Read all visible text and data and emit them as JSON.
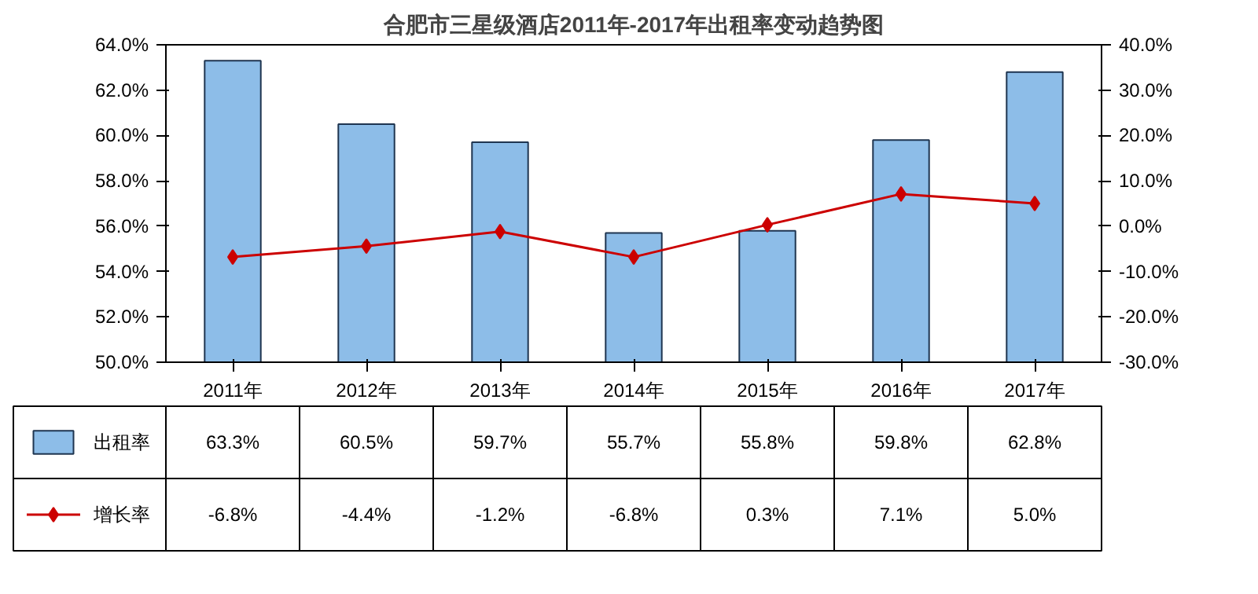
{
  "chart_data": {
    "type": "bar",
    "title": "合肥市三星级酒店2011年-2017年出租率变动趋势图",
    "categories": [
      "2011年",
      "2012年",
      "2013年",
      "2014年",
      "2015年",
      "2016年",
      "2017年"
    ],
    "series": [
      {
        "name": "出租率",
        "type": "bar",
        "color": "#8dbde8",
        "values": [
          63.3,
          60.5,
          59.7,
          55.7,
          55.8,
          59.8,
          62.8
        ],
        "value_labels": [
          "63.3%",
          "60.5%",
          "59.7%",
          "55.7%",
          "55.8%",
          "59.8%",
          "62.8%"
        ]
      },
      {
        "name": "增长率",
        "type": "line",
        "axis": "y2",
        "color": "#cc0000",
        "marker": "diamond",
        "values": [
          -6.8,
          -4.4,
          -1.2,
          -6.8,
          0.3,
          7.1,
          5.0
        ],
        "value_labels": [
          "-6.8%",
          "-4.4%",
          "-1.2%",
          "-6.8%",
          "0.3%",
          "7.1%",
          "5.0%"
        ]
      }
    ],
    "ylim": [
      50,
      64
    ],
    "yticks": [
      {
        "value": 50,
        "label": "50.0%"
      },
      {
        "value": 52,
        "label": "52.0%"
      },
      {
        "value": 54,
        "label": "54.0%"
      },
      {
        "value": 56,
        "label": "56.0%"
      },
      {
        "value": 58,
        "label": "58.0%"
      },
      {
        "value": 60,
        "label": "60.0%"
      },
      {
        "value": 62,
        "label": "62.0%"
      },
      {
        "value": 64,
        "label": "64.0%"
      }
    ],
    "y2lim": [
      -30,
      40
    ],
    "y2ticks": [
      {
        "value": -30,
        "label": "-30.0%"
      },
      {
        "value": -20,
        "label": "-20.0%"
      },
      {
        "value": -10,
        "label": "-10.0%"
      },
      {
        "value": 0,
        "label": "0.0%"
      },
      {
        "value": 10,
        "label": "10.0%"
      },
      {
        "value": 20,
        "label": "20.0%"
      },
      {
        "value": 30,
        "label": "30.0%"
      },
      {
        "value": 40,
        "label": "40.0%"
      }
    ],
    "grid": false,
    "legend": "bottom"
  }
}
